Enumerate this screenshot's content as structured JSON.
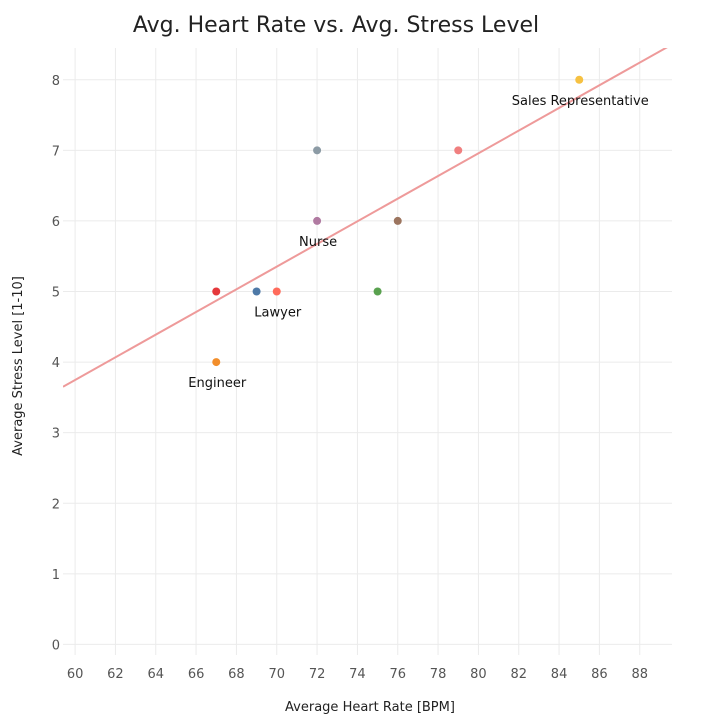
{
  "chart_data": {
    "type": "scatter",
    "title": "Avg. Heart Rate vs. Avg. Stress Level",
    "xlabel": "Average Heart Rate [BPM]",
    "ylabel": "Average Stress Level [1-10]",
    "xlim": [
      59.4,
      89.6
    ],
    "ylim": [
      -0.15,
      8.45
    ],
    "x_ticks": [
      60,
      62,
      64,
      66,
      68,
      70,
      72,
      74,
      76,
      78,
      80,
      82,
      84,
      86,
      88
    ],
    "y_ticks": [
      0,
      1,
      2,
      3,
      4,
      5,
      6,
      7,
      8
    ],
    "grid": true,
    "points": [
      {
        "x": 67,
        "y": 5,
        "color": "#e5383b"
      },
      {
        "x": 67,
        "y": 4,
        "color": "#f28e2b",
        "label": "Engineer"
      },
      {
        "x": 69,
        "y": 5,
        "color": "#4e79a7"
      },
      {
        "x": 70,
        "y": 5,
        "color": "#ff6b5b",
        "label": "Lawyer"
      },
      {
        "x": 72,
        "y": 7,
        "color": "#8c9ba5"
      },
      {
        "x": 72,
        "y": 6,
        "color": "#b07aa1",
        "label": "Nurse"
      },
      {
        "x": 75,
        "y": 5,
        "color": "#59a14f"
      },
      {
        "x": 76,
        "y": 6,
        "color": "#9c755f"
      },
      {
        "x": 79,
        "y": 7,
        "color": "#f07f7f"
      },
      {
        "x": 85,
        "y": 8,
        "color": "#f6c142",
        "label": "Sales Representative"
      }
    ],
    "trendline": {
      "x": [
        59.4,
        89.6
      ],
      "y": [
        3.65,
        8.5
      ],
      "color": "#ee9a9a"
    }
  }
}
